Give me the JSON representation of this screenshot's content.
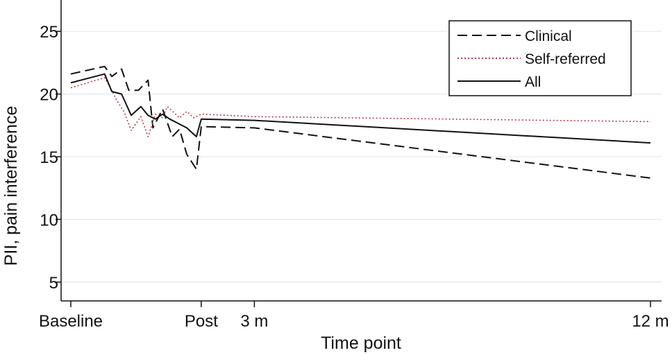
{
  "chart_data": {
    "type": "line",
    "xlabel": "Time point",
    "ylabel": "PII, pain interference",
    "ylim": [
      3.5,
      27.5
    ],
    "yticks": [
      5,
      10,
      15,
      20,
      25
    ],
    "xlim": [
      0,
      12
    ],
    "xticks": [
      {
        "value": 0,
        "label": "Baseline"
      },
      {
        "value": 2.7,
        "label": "Post"
      },
      {
        "value": 3.8,
        "label": "3 m"
      },
      {
        "value": 12,
        "label": "12 m"
      }
    ],
    "grid": "horizontal",
    "legend_position": "top-right",
    "series": [
      {
        "name": "Clinical",
        "style": "dashed",
        "color": "#111111",
        "points": [
          {
            "x": 0,
            "y": 21.6
          },
          {
            "x": 0.7,
            "y": 22.2
          },
          {
            "x": 0.85,
            "y": 21.4
          },
          {
            "x": 1.05,
            "y": 22.0
          },
          {
            "x": 1.2,
            "y": 20.3
          },
          {
            "x": 1.4,
            "y": 20.3
          },
          {
            "x": 1.6,
            "y": 21.1
          },
          {
            "x": 1.7,
            "y": 17.3
          },
          {
            "x": 1.9,
            "y": 18.8
          },
          {
            "x": 2.1,
            "y": 16.6
          },
          {
            "x": 2.25,
            "y": 17.2
          },
          {
            "x": 2.4,
            "y": 15.2
          },
          {
            "x": 2.6,
            "y": 14.0
          },
          {
            "x": 2.7,
            "y": 17.4
          },
          {
            "x": 3.8,
            "y": 17.3
          },
          {
            "x": 12,
            "y": 13.3
          }
        ]
      },
      {
        "name": "Self-referred",
        "style": "dotted",
        "color": "#b23a48",
        "points": [
          {
            "x": 0,
            "y": 20.5
          },
          {
            "x": 0.7,
            "y": 21.3
          },
          {
            "x": 0.85,
            "y": 20.3
          },
          {
            "x": 0.95,
            "y": 19.5
          },
          {
            "x": 1.1,
            "y": 18.6
          },
          {
            "x": 1.25,
            "y": 17.1
          },
          {
            "x": 1.45,
            "y": 18.2
          },
          {
            "x": 1.6,
            "y": 16.6
          },
          {
            "x": 1.75,
            "y": 18.4
          },
          {
            "x": 1.9,
            "y": 18.1
          },
          {
            "x": 2.0,
            "y": 19.0
          },
          {
            "x": 2.25,
            "y": 18.1
          },
          {
            "x": 2.4,
            "y": 18.6
          },
          {
            "x": 2.55,
            "y": 18.1
          },
          {
            "x": 2.7,
            "y": 18.4
          },
          {
            "x": 3.8,
            "y": 18.2
          },
          {
            "x": 12,
            "y": 17.8
          }
        ]
      },
      {
        "name": "All",
        "style": "solid",
        "color": "#111111",
        "points": [
          {
            "x": 0,
            "y": 20.9
          },
          {
            "x": 0.7,
            "y": 21.6
          },
          {
            "x": 0.85,
            "y": 20.2
          },
          {
            "x": 1.05,
            "y": 20.0
          },
          {
            "x": 1.25,
            "y": 18.3
          },
          {
            "x": 1.45,
            "y": 19.0
          },
          {
            "x": 1.6,
            "y": 18.3
          },
          {
            "x": 1.75,
            "y": 18.0
          },
          {
            "x": 1.9,
            "y": 18.4
          },
          {
            "x": 2.05,
            "y": 18.0
          },
          {
            "x": 2.25,
            "y": 17.6
          },
          {
            "x": 2.4,
            "y": 17.3
          },
          {
            "x": 2.6,
            "y": 16.6
          },
          {
            "x": 2.7,
            "y": 18.0
          },
          {
            "x": 3.8,
            "y": 17.9
          },
          {
            "x": 12,
            "y": 16.1
          }
        ]
      }
    ]
  }
}
